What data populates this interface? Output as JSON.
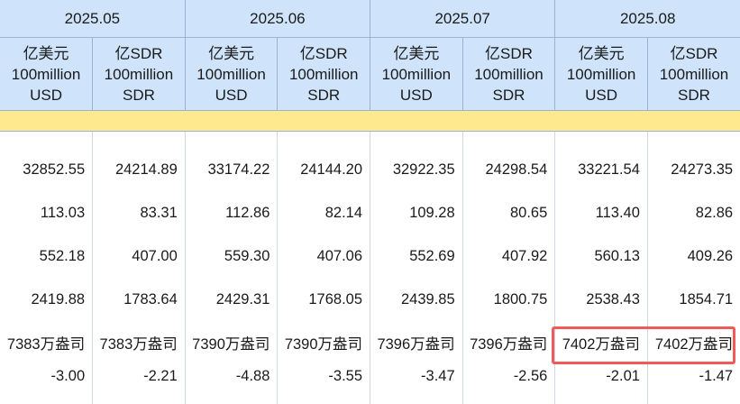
{
  "months": [
    "2025.05",
    "2025.06",
    "2025.07",
    "2025.08"
  ],
  "units": [
    [
      "亿美元",
      "100million",
      "USD"
    ],
    [
      "亿SDR",
      "100million",
      "SDR"
    ],
    [
      "亿美元",
      "100million",
      "USD"
    ],
    [
      "亿SDR",
      "100million",
      "SDR"
    ],
    [
      "亿美元",
      "100million",
      "USD"
    ],
    [
      "亿SDR",
      "100million",
      "SDR"
    ],
    [
      "亿美元",
      "100million",
      "USD"
    ],
    [
      "亿SDR",
      "100million",
      "SDR"
    ]
  ],
  "rows": [
    [
      "32852.55",
      "24214.89",
      "33174.22",
      "24144.20",
      "32922.35",
      "24298.54",
      "33221.54",
      "24273.35"
    ],
    [
      "113.03",
      "83.31",
      "112.86",
      "82.14",
      "109.28",
      "80.65",
      "113.40",
      "82.86"
    ],
    [
      "552.18",
      "407.00",
      "559.30",
      "407.06",
      "552.69",
      "407.92",
      "560.13",
      "409.26"
    ],
    [
      "2419.88",
      "1783.64",
      "2429.31",
      "1768.05",
      "2439.85",
      "1800.75",
      "2538.43",
      "1854.71"
    ],
    [
      "7383万盎司",
      "7383万盎司",
      "7390万盎司",
      "7390万盎司",
      "7396万盎司",
      "7396万盎司",
      "7402万盎司",
      "7402万盎司"
    ],
    [
      "-3.00",
      "-2.21",
      "-4.88",
      "-3.55",
      "-3.47",
      "-2.56",
      "-2.01",
      "-1.47"
    ]
  ],
  "highlight_color": "#ef5a5a",
  "header_bg": "#cfe4fb",
  "band_bg": "#ffe98f"
}
